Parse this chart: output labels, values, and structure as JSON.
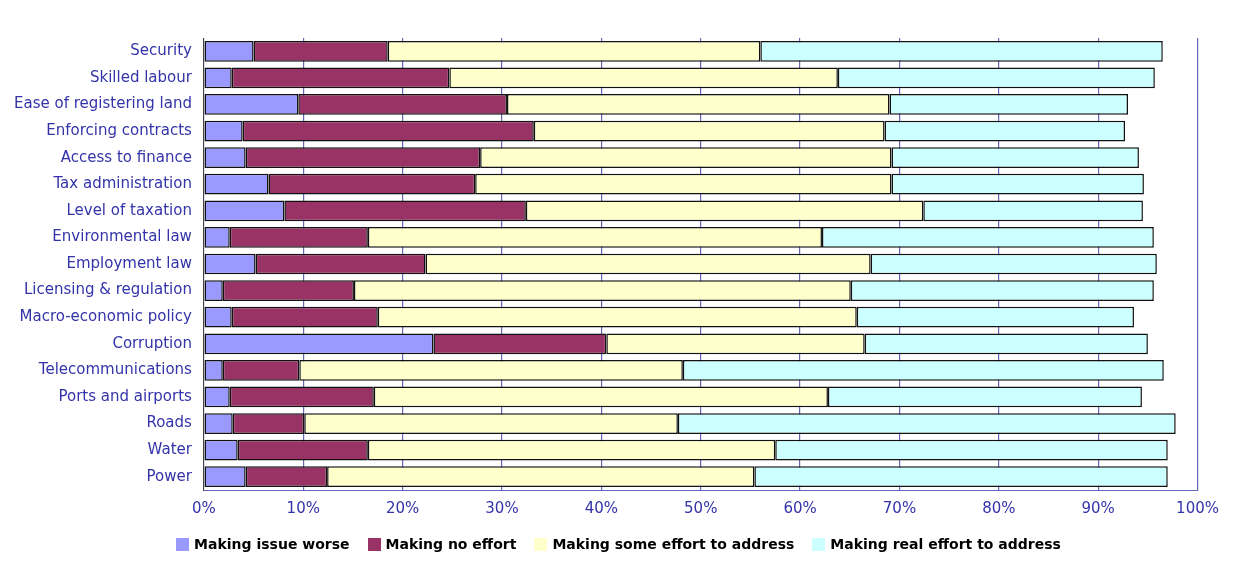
{
  "chart_data": {
    "type": "bar",
    "orientation": "horizontal",
    "stacked": true,
    "categories": [
      "Security",
      "Skilled labour",
      "Ease of registering land",
      "Enforcing contracts",
      "Access to finance",
      "Tax administration",
      "Level of taxation",
      "Environmental law",
      "Employment law",
      "Licensing & regulation",
      "Macro-economic policy",
      "Corruption",
      "Telecommunications",
      "Ports and airports",
      "Roads",
      "Water",
      "Power"
    ],
    "series": [
      {
        "name": "Making issue worse",
        "color": "#9999ff",
        "values": [
          5,
          2.8,
          9.5,
          3.9,
          4.2,
          6.5,
          8.1,
          2.6,
          5.2,
          1.9,
          2.8,
          23.1,
          1.9,
          2.6,
          2.9,
          3.4,
          4.2
        ]
      },
      {
        "name": "Making no effort",
        "color": "#993366",
        "values": [
          13.5,
          21.9,
          21,
          29.3,
          23.6,
          20.8,
          24.3,
          13.9,
          17.1,
          13.2,
          14.7,
          17.4,
          7.7,
          14.5,
          7.2,
          13.1,
          8.2
        ]
      },
      {
        "name": "Making some effort to address",
        "color": "#ffffcc",
        "values": [
          37.5,
          39.1,
          38.5,
          35.3,
          41.4,
          41.9,
          40,
          45.7,
          44.8,
          50,
          48.2,
          26,
          38.6,
          45.7,
          37.6,
          41,
          43
        ]
      },
      {
        "name": "Making real effort to address",
        "color": "#ccffff",
        "values": [
          40.5,
          31.9,
          24,
          24.2,
          24.9,
          25.4,
          22.1,
          33.4,
          28.8,
          30.5,
          27.9,
          28.5,
          48.4,
          31.6,
          50.1,
          39.5,
          41.6
        ]
      }
    ],
    "xlim": [
      0,
      100
    ],
    "xticks": [
      {
        "value": 0,
        "label": "0%"
      },
      {
        "value": 10,
        "label": "10%"
      },
      {
        "value": 20,
        "label": "20%"
      },
      {
        "value": 30,
        "label": "30%"
      },
      {
        "value": 40,
        "label": "40%"
      },
      {
        "value": 50,
        "label": "50%"
      },
      {
        "value": 60,
        "label": "60%"
      },
      {
        "value": 70,
        "label": "70%"
      },
      {
        "value": 80,
        "label": "80%"
      },
      {
        "value": 90,
        "label": "90%"
      },
      {
        "value": 100,
        "label": "100%"
      }
    ],
    "grid": "x",
    "legend": "bottom"
  }
}
